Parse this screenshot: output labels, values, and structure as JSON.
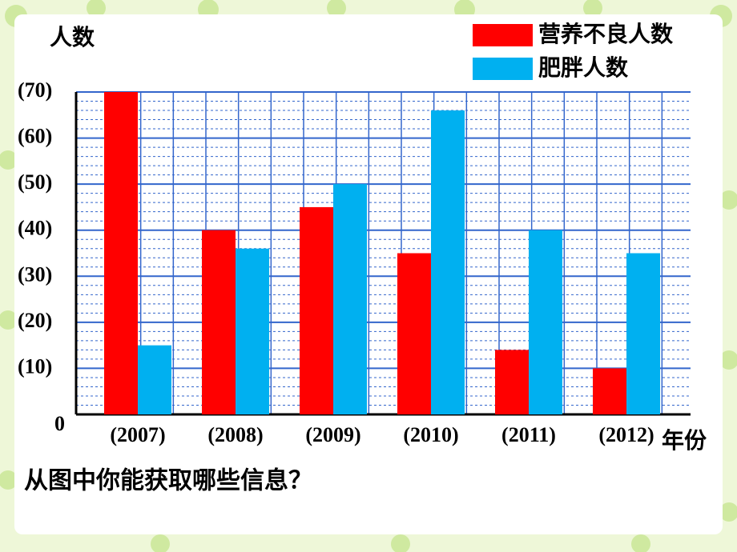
{
  "chart_data": {
    "type": "bar",
    "y_label": "人数",
    "x_label": "年份",
    "question": "从图中你能获取哪些信息？",
    "categories": [
      "(2007)",
      "(2008)",
      "(2009)",
      "(2010)",
      "(2011)",
      "(2012)"
    ],
    "series": [
      {
        "name": "营养不良人数",
        "color": "#ff0000",
        "values": [
          70,
          40,
          45,
          35,
          14,
          10
        ]
      },
      {
        "name": "肥胖人数",
        "color": "#00b0f0",
        "values": [
          15,
          36,
          50,
          66,
          40,
          35
        ]
      }
    ],
    "ylim": [
      0,
      70
    ],
    "yticks": [
      0,
      {
        "value": 10,
        "label": "(10)"
      },
      {
        "value": 20,
        "label": "(20)"
      },
      {
        "value": 30,
        "label": "(30)"
      },
      {
        "value": 40,
        "label": "(40)"
      },
      {
        "value": 50,
        "label": "(50)"
      },
      {
        "value": 60,
        "label": "(60)"
      },
      {
        "value": 70,
        "label": "(70)"
      }
    ],
    "grid": true,
    "grid_color": "#3366cc",
    "legend": "top-right"
  }
}
